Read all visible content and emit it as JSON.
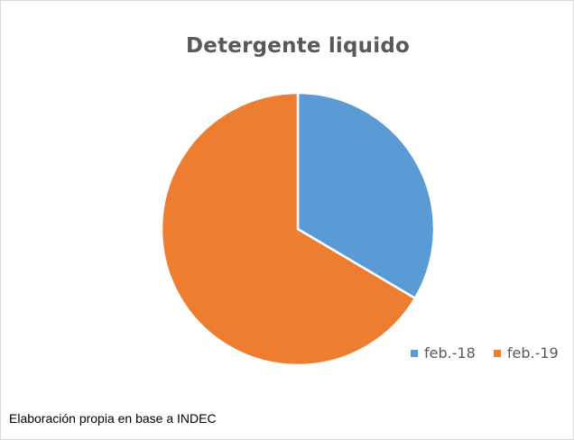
{
  "chart_data": {
    "type": "pie",
    "title": "Detergente liquido",
    "categories": [
      "feb.-18",
      "feb.-19"
    ],
    "values": [
      33.5,
      66.5
    ],
    "colors": [
      "#5b9bd5",
      "#ed7d31"
    ],
    "legend_position": "bottom-right"
  },
  "footer": {
    "source": "Elaboración propia en base a INDEC"
  }
}
